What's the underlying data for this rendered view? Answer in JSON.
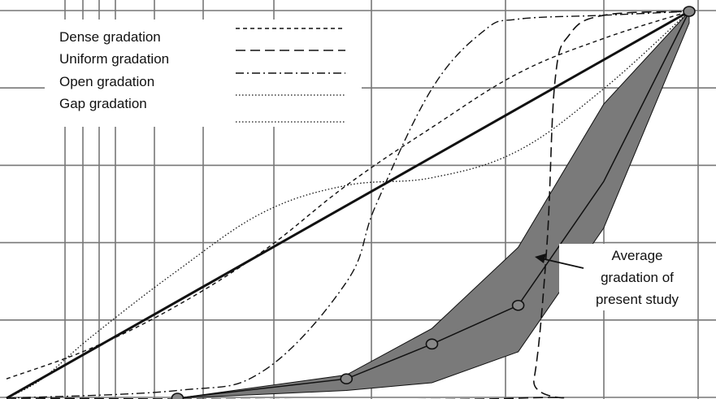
{
  "chart_data": {
    "type": "line",
    "title": "",
    "xlabel": "",
    "ylabel": "",
    "x_scale": "log",
    "xlim": [
      0.075,
      19
    ],
    "ylim": [
      0,
      100
    ],
    "grid": true,
    "legend_placement": "top-left",
    "legend": [
      {
        "label": "Dense gradation",
        "style": "short-dash"
      },
      {
        "label": "Uniform gradation",
        "style": "long-dash"
      },
      {
        "label": "Open gradation",
        "style": "dash-dot"
      },
      {
        "label": "Gap gradation",
        "style": "dotted"
      }
    ],
    "annotation": {
      "lines": [
        "Average",
        "gradation of",
        "present study"
      ]
    },
    "series": [
      {
        "style": "solid-thick",
        "points": [
          [
            0.075,
            0
          ],
          [
            19,
            100
          ]
        ]
      },
      {
        "style": "short-dash",
        "points": [
          [
            0.075,
            5
          ],
          [
            0.15,
            13
          ],
          [
            0.3,
            24
          ],
          [
            0.6,
            38
          ],
          [
            1.18,
            55
          ],
          [
            2.36,
            70
          ],
          [
            4.75,
            84
          ],
          [
            9.5,
            93
          ],
          [
            19,
            100
          ]
        ]
      },
      {
        "style": "long-dash",
        "points": [
          [
            0.075,
            0
          ],
          [
            4.75,
            0
          ],
          [
            5.4,
            5
          ],
          [
            6.0,
            40
          ],
          [
            6.4,
            82
          ],
          [
            7.2,
            94
          ],
          [
            9.5,
            99
          ],
          [
            19,
            100
          ]
        ]
      },
      {
        "style": "dash-dot",
        "points": [
          [
            0.075,
            0
          ],
          [
            0.3,
            2
          ],
          [
            0.6,
            7
          ],
          [
            1.18,
            30
          ],
          [
            1.5,
            50
          ],
          [
            2.36,
            80
          ],
          [
            3.6,
            95
          ],
          [
            4.75,
            98
          ],
          [
            9.5,
            99
          ],
          [
            19,
            100
          ]
        ]
      },
      {
        "style": "dotted",
        "points": [
          [
            0.075,
            0
          ],
          [
            0.1,
            5
          ],
          [
            0.15,
            16
          ],
          [
            0.3,
            33
          ],
          [
            0.6,
            48
          ],
          [
            1.18,
            55
          ],
          [
            2.36,
            57
          ],
          [
            4.75,
            64
          ],
          [
            9.5,
            80
          ],
          [
            19,
            100
          ]
        ]
      },
      {
        "style": "solid-thin-with-markers",
        "points": [
          [
            0.3,
            0
          ],
          [
            1.18,
            5
          ],
          [
            2.36,
            14
          ],
          [
            4.75,
            24
          ],
          [
            9.5,
            56
          ],
          [
            19,
            100
          ]
        ],
        "marked_points": [
          [
            0.3,
            0
          ],
          [
            1.18,
            5
          ],
          [
            2.36,
            14
          ],
          [
            4.75,
            24
          ],
          [
            19,
            100
          ]
        ]
      }
    ],
    "band": {
      "upper": [
        [
          0.3,
          0
        ],
        [
          1.18,
          6
        ],
        [
          2.36,
          18
        ],
        [
          4.75,
          39
        ],
        [
          9.5,
          76
        ],
        [
          19,
          100
        ]
      ],
      "lower": [
        [
          0.3,
          0
        ],
        [
          1.18,
          2
        ],
        [
          2.36,
          4
        ],
        [
          4.75,
          12
        ],
        [
          9.5,
          44
        ],
        [
          19,
          97
        ]
      ]
    },
    "colors": {
      "band_fill": "#7a7a7a",
      "line": "#111111",
      "grid": "#777777",
      "marker_fill": "#888888"
    }
  }
}
